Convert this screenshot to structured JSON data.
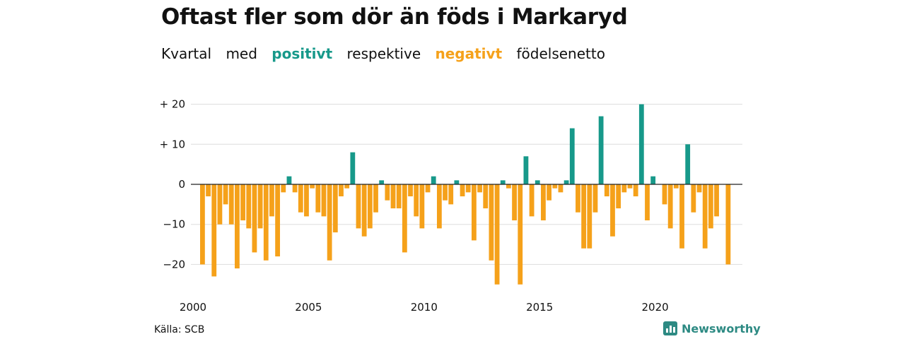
{
  "title": "Oftast fler som dör än föds i Markaryd",
  "subtitle": {
    "part1": "Kvartal",
    "part2": "med",
    "positive_word": "positivt",
    "part3": "respektive",
    "negative_word": "negativt",
    "part4": "födelsenetto"
  },
  "source": "Källa: SCB",
  "brand": "Newsworthy",
  "colors": {
    "positive": "#17998a",
    "negative": "#f5a11a",
    "grid": "#dddddd",
    "brand": "#2d8a83"
  },
  "chart_data": {
    "type": "bar",
    "title": "Oftast fler som dör än föds i Markaryd",
    "subtitle": "Kvartal med positivt respektive negativt födelsenetto",
    "x_start": {
      "year": 2000,
      "quarter": 1
    },
    "x_ticks": [
      "2000",
      "2005",
      "2010",
      "2015",
      "2020"
    ],
    "y_ticks": [
      {
        "value": 20,
        "label": "+ 20"
      },
      {
        "value": 10,
        "label": "+ 10"
      },
      {
        "value": 0,
        "label": "0"
      },
      {
        "value": -10,
        "label": "−10"
      },
      {
        "value": -20,
        "label": "−20"
      }
    ],
    "ylim": [
      -25,
      20
    ],
    "grid": true,
    "values": [
      -20,
      -3,
      -23,
      -10,
      -5,
      -10,
      -21,
      -9,
      -11,
      -17,
      -11,
      -19,
      -8,
      -18,
      -2,
      2,
      -2,
      -7,
      -8,
      -1,
      -7,
      -8,
      -19,
      -12,
      -3,
      -1,
      8,
      -11,
      -13,
      -11,
      -7,
      1,
      -4,
      -6,
      -6,
      -17,
      -3,
      -8,
      -11,
      -2,
      2,
      -11,
      -4,
      -5,
      1,
      -3,
      -2,
      -14,
      -2,
      -6,
      -19,
      -25,
      1,
      -1,
      -9,
      -25,
      7,
      -8,
      1,
      -9,
      -4,
      -1,
      -2,
      1,
      14,
      -7,
      -16,
      -16,
      -7,
      17,
      -3,
      -13,
      -6,
      -2,
      -1,
      -3,
      20,
      -9,
      2,
      0,
      -5,
      -11,
      -1,
      -16,
      10,
      -7,
      -2,
      -16,
      -11,
      -8,
      0,
      -20
    ]
  }
}
